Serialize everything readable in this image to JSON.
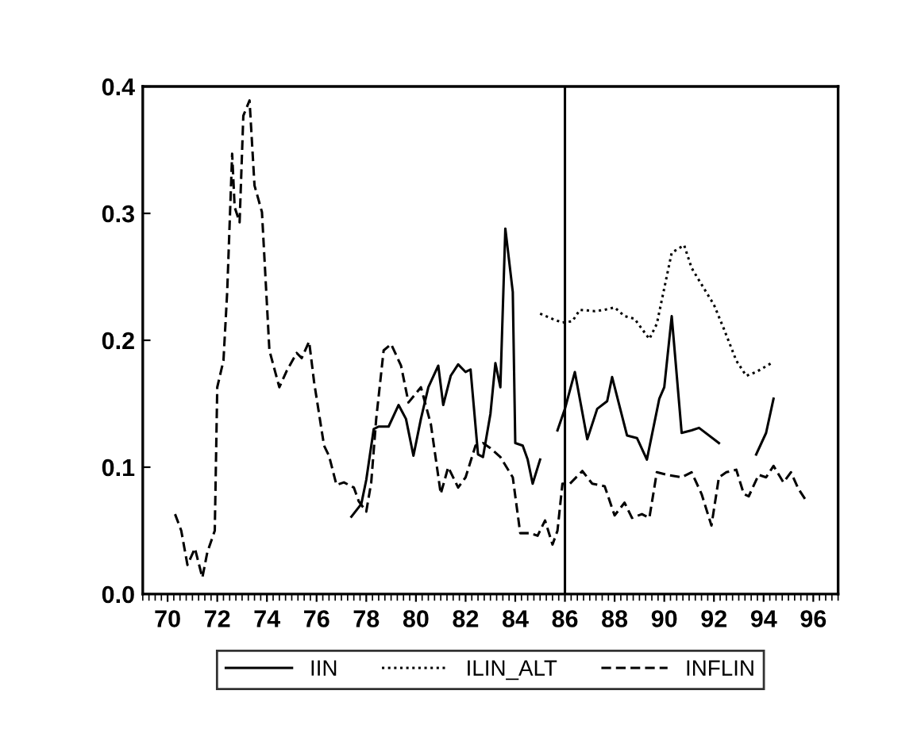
{
  "chart_data": {
    "type": "line",
    "xlim": [
      69,
      97
    ],
    "ylim": [
      0,
      0.4
    ],
    "xticks": [
      70,
      72,
      74,
      76,
      78,
      80,
      82,
      84,
      86,
      88,
      90,
      92,
      94,
      96
    ],
    "yticks": [
      {
        "value": 0,
        "label": "0.0"
      },
      0.1,
      0.2,
      0.3,
      0.4
    ],
    "grid": false,
    "legend": "bottom",
    "ref_lines": [
      {
        "axis": "x",
        "value": 86,
        "color": "#000000",
        "line_style": "solid"
      }
    ],
    "series": [
      {
        "name": "IIN",
        "color": "#000000",
        "line_style": "solid",
        "x": [
          77.4,
          77.8,
          78.0,
          78.3,
          78.5,
          78.9,
          79.3,
          79.6,
          79.9,
          80.2,
          80.5,
          80.9,
          81.1,
          81.4,
          81.7,
          82.0,
          82.2,
          82.5,
          82.7,
          83.0,
          83.2,
          83.4,
          83.6,
          83.9,
          84.0,
          84.3,
          84.5,
          84.7,
          85.0,
          85.3,
          85.7,
          86.0,
          86.4,
          86.9,
          87.3,
          87.7,
          87.9,
          88.5,
          88.9,
          89.3,
          89.8,
          90.0,
          90.3,
          90.7,
          91.1,
          91.4,
          92.2,
          93.0,
          93.7,
          94.1,
          94.4
        ],
        "values": [
          0.061,
          0.071,
          0.09,
          0.13,
          0.132,
          0.132,
          0.149,
          0.138,
          0.109,
          0.138,
          0.163,
          0.18,
          0.149,
          0.172,
          0.181,
          0.175,
          0.177,
          0.11,
          0.108,
          0.142,
          0.182,
          0.163,
          0.288,
          0.238,
          0.119,
          0.117,
          0.106,
          0.087,
          0.106,
          null,
          0.129,
          0.146,
          0.175,
          0.122,
          0.146,
          0.152,
          0.171,
          0.125,
          0.123,
          0.106,
          0.154,
          0.163,
          0.219,
          0.127,
          0.129,
          0.131,
          0.119,
          null,
          0.11,
          0.127,
          0.154
        ]
      },
      {
        "name": "ILIN_ALT",
        "color": "#000000",
        "line_style": "dotted",
        "x": [
          85.0,
          85.6,
          85.9,
          86.3,
          86.6,
          87.2,
          87.6,
          88.0,
          88.4,
          88.8,
          89.1,
          89.4,
          89.7,
          90.3,
          90.8,
          91.1,
          91.5,
          92.0,
          92.4,
          92.9,
          93.3,
          93.7,
          94.4
        ],
        "values": [
          0.221,
          0.216,
          0.214,
          0.215,
          0.224,
          0.223,
          0.224,
          0.226,
          0.219,
          0.217,
          0.209,
          0.201,
          0.213,
          0.269,
          0.275,
          0.257,
          0.244,
          0.228,
          0.209,
          0.184,
          0.172,
          0.175,
          0.183
        ]
      },
      {
        "name": "INFLIN",
        "color": "#000000",
        "line_style": "dashed",
        "x": [
          70.3,
          70.55,
          70.8,
          71.1,
          71.4,
          71.6,
          71.9,
          72.0,
          72.25,
          72.4,
          72.6,
          72.7,
          72.9,
          73.05,
          73.3,
          73.5,
          73.8,
          74.1,
          74.5,
          74.8,
          75.2,
          75.4,
          75.7,
          75.9,
          76.3,
          76.5,
          76.8,
          77.1,
          77.5,
          77.7,
          78.0,
          78.2,
          78.4,
          78.7,
          79.0,
          79.4,
          79.7,
          79.95,
          80.2,
          80.6,
          81.0,
          81.3,
          81.7,
          82.0,
          82.4,
          82.7,
          83.0,
          83.4,
          83.9,
          84.2,
          84.6,
          84.9,
          85.2,
          85.5,
          85.7,
          85.9,
          86.2,
          86.7,
          87.1,
          87.6,
          88.0,
          88.4,
          88.7,
          89.1,
          89.4,
          89.7,
          90.1,
          90.7,
          91.1,
          91.5,
          91.9,
          92.2,
          92.5,
          92.9,
          93.2,
          93.4,
          93.8,
          94.1,
          94.4,
          94.8,
          95.1,
          95.4,
          95.7
        ],
        "values": [
          0.063,
          0.05,
          0.023,
          0.036,
          0.013,
          0.033,
          0.05,
          0.163,
          0.184,
          0.238,
          0.347,
          0.305,
          0.293,
          0.377,
          0.389,
          0.322,
          0.301,
          0.192,
          0.163,
          0.176,
          0.19,
          0.186,
          0.199,
          0.167,
          0.117,
          0.109,
          0.086,
          0.088,
          0.084,
          0.073,
          0.065,
          0.088,
          0.138,
          0.192,
          0.197,
          0.18,
          0.151,
          0.157,
          0.163,
          0.134,
          0.079,
          0.1,
          0.084,
          0.092,
          0.117,
          0.119,
          0.115,
          0.108,
          0.092,
          0.048,
          0.048,
          0.046,
          0.058,
          0.039,
          0.05,
          0.087,
          0.087,
          0.097,
          0.087,
          0.085,
          0.062,
          0.072,
          0.06,
          0.063,
          0.06,
          0.096,
          0.094,
          0.092,
          0.096,
          0.079,
          0.054,
          0.092,
          0.096,
          0.098,
          0.079,
          0.077,
          0.094,
          0.092,
          0.101,
          0.088,
          0.096,
          0.083,
          0.074
        ]
      }
    ]
  }
}
